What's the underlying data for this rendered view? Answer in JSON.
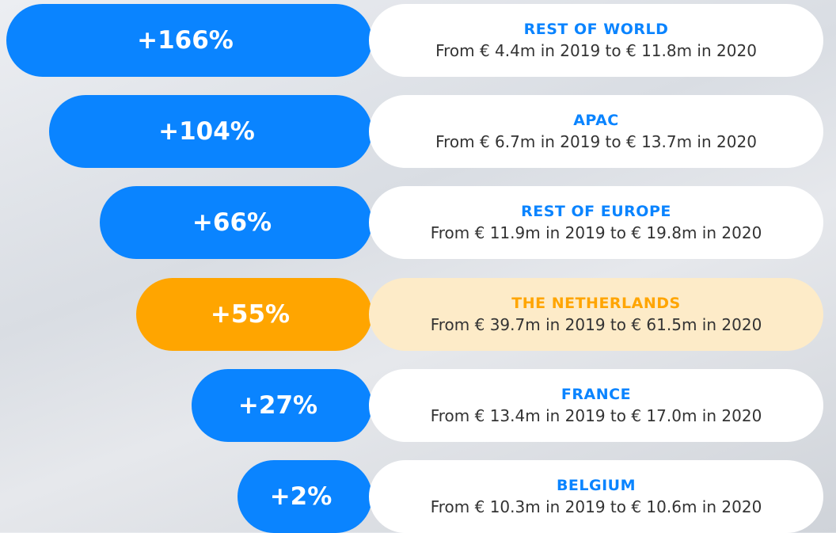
{
  "rows": [
    {
      "change": "+166%",
      "title": "REST OF WORLD",
      "detail": "From € 4.4m in 2019 to € 11.8m in 2020",
      "color": "#0a84ff",
      "title_color": "#0a84ff",
      "card_color": "#ffffff"
    },
    {
      "change": "+104%",
      "title": "APAC",
      "detail": "From € 6.7m in 2019 to € 13.7m in 2020",
      "color": "#0a84ff",
      "title_color": "#0a84ff",
      "card_color": "#ffffff"
    },
    {
      "change": "+66%",
      "title": "REST OF EUROPE",
      "detail": "From € 11.9m in 2019 to € 19.8m in 2020",
      "color": "#0a84ff",
      "title_color": "#0a84ff",
      "card_color": "#ffffff"
    },
    {
      "change": "+55%",
      "title": "THE NETHERLANDS",
      "detail": "From € 39.7m in 2019 to € 61.5m in 2020",
      "color": "#ffa500",
      "title_color": "#ffa500",
      "card_color": "#fdebc8"
    },
    {
      "change": "+27%",
      "title": "FRANCE",
      "detail": "From € 13.4m in 2019 to € 17.0m in 2020",
      "color": "#0a84ff",
      "title_color": "#0a84ff",
      "card_color": "#ffffff"
    },
    {
      "change": "+2%",
      "title": "BELGIUM",
      "detail": "From € 10.3m in 2019 to € 10.6m in 2020",
      "color": "#0a84ff",
      "title_color": "#0a84ff",
      "card_color": "#ffffff"
    }
  ]
}
